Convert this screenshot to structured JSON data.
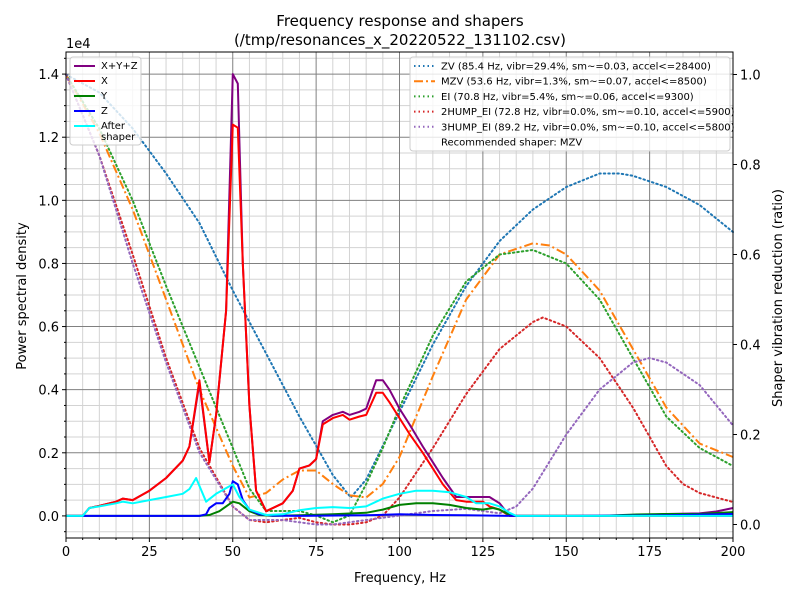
{
  "chart_data": {
    "type": "line",
    "title": "Frequency response and shapers",
    "subtitle": "(/tmp/resonances_x_20220522_131102.csv)",
    "xlabel": "Frequency, Hz",
    "ylabel": "Power spectral density",
    "ylabel_right": "Shaper vibration reduction (ratio)",
    "y_offset_text": "1e4",
    "xlim": [
      0,
      200
    ],
    "ylim": [
      -0.07,
      1.47
    ],
    "ylim_right": [
      -0.03,
      1.05
    ],
    "x_ticks": [
      "0",
      "25",
      "50",
      "75",
      "100",
      "125",
      "150",
      "175",
      "200"
    ],
    "x_tick_values": [
      0,
      25,
      50,
      75,
      100,
      125,
      150,
      175,
      200
    ],
    "y_ticks": [
      "0.0",
      "0.2",
      "0.4",
      "0.6",
      "0.8",
      "1.0",
      "1.2",
      "1.4"
    ],
    "y_tick_values": [
      0,
      0.2,
      0.4,
      0.6,
      0.8,
      1.0,
      1.2,
      1.4
    ],
    "y_ticks_right": [
      "0.0",
      "0.2",
      "0.4",
      "0.6",
      "0.8",
      "1.0"
    ],
    "y_tick_values_right": [
      0,
      0.2,
      0.4,
      0.6,
      0.8,
      1.0
    ],
    "grid": true,
    "legend_left_placement": "top-left",
    "legend_right_placement": "top-right",
    "series": [
      {
        "name": "X+Y+Z",
        "color": "#800080",
        "axis": "left",
        "style": "solid",
        "x": [
          0,
          5,
          7,
          10,
          15,
          17,
          20,
          25,
          30,
          35,
          37,
          40,
          43,
          45,
          48,
          50,
          51.5,
          53,
          55,
          57,
          60,
          65,
          68,
          70,
          73,
          75,
          77,
          80,
          83,
          85,
          88,
          90,
          93,
          95,
          97,
          100,
          103,
          107,
          110,
          113,
          117,
          120,
          123,
          125,
          127,
          130,
          133,
          135,
          140,
          150,
          160,
          170,
          180,
          190,
          195,
          200
        ],
        "y": [
          0,
          0,
          0.025,
          0.032,
          0.045,
          0.055,
          0.05,
          0.08,
          0.12,
          0.175,
          0.22,
          0.42,
          0.17,
          0.32,
          0.65,
          1.4,
          1.37,
          0.8,
          0.35,
          0.08,
          0.015,
          0.04,
          0.08,
          0.15,
          0.16,
          0.18,
          0.3,
          0.32,
          0.33,
          0.32,
          0.33,
          0.34,
          0.43,
          0.43,
          0.4,
          0.34,
          0.29,
          0.22,
          0.17,
          0.12,
          0.06,
          0.06,
          0.06,
          0.06,
          0.06,
          0.04,
          0.0,
          0.0,
          0.0,
          0.0,
          0.0,
          0.001,
          0.006,
          0.008,
          0.014,
          0.025
        ]
      },
      {
        "name": "X",
        "color": "#ff0000",
        "axis": "left",
        "style": "solid",
        "x": [
          0,
          5,
          7,
          10,
          15,
          17,
          20,
          25,
          30,
          35,
          37,
          40,
          43,
          45,
          48,
          50,
          51.5,
          53,
          55,
          57,
          60,
          65,
          68,
          70,
          73,
          75,
          77,
          80,
          83,
          85,
          88,
          90,
          93,
          95,
          97,
          100,
          103,
          107,
          110,
          113,
          117,
          120,
          123,
          125,
          127,
          130,
          133,
          135,
          140,
          200
        ],
        "y": [
          0,
          0,
          0.025,
          0.032,
          0.045,
          0.055,
          0.05,
          0.08,
          0.12,
          0.175,
          0.22,
          0.43,
          0.17,
          0.32,
          0.65,
          1.24,
          1.23,
          0.8,
          0.35,
          0.08,
          0.015,
          0.04,
          0.08,
          0.15,
          0.16,
          0.18,
          0.29,
          0.31,
          0.32,
          0.305,
          0.315,
          0.32,
          0.39,
          0.39,
          0.36,
          0.31,
          0.26,
          0.2,
          0.15,
          0.1,
          0.05,
          0.045,
          0.045,
          0.045,
          0.03,
          0.02,
          0.0,
          0.0,
          0.0,
          0.0
        ]
      },
      {
        "name": "Y",
        "color": "#008000",
        "axis": "left",
        "style": "solid",
        "x": [
          0,
          40,
          43,
          46,
          48,
          50,
          52,
          55,
          58,
          62,
          70,
          80,
          90,
          95,
          100,
          105,
          110,
          115,
          120,
          125,
          128,
          130,
          133,
          135,
          150,
          160,
          170,
          180,
          190,
          200
        ],
        "y": [
          0,
          0,
          0.003,
          0.015,
          0.03,
          0.045,
          0.04,
          0.015,
          0.003,
          0.0,
          0.002,
          0.005,
          0.01,
          0.02,
          0.035,
          0.04,
          0.04,
          0.035,
          0.025,
          0.02,
          0.025,
          0.02,
          0.003,
          0.0,
          0.0,
          0.0,
          0.004,
          0.006,
          0.006,
          0.012
        ]
      },
      {
        "name": "Z",
        "color": "#0000ff",
        "axis": "left",
        "style": "solid",
        "x": [
          0,
          40,
          42,
          43,
          45,
          47,
          49,
          50,
          51.5,
          53,
          55,
          58,
          62,
          70,
          90,
          100,
          110,
          120,
          135,
          150,
          180,
          200
        ],
        "y": [
          0,
          0,
          0.005,
          0.025,
          0.04,
          0.04,
          0.07,
          0.11,
          0.1,
          0.05,
          0.02,
          0.005,
          0.001,
          0.0,
          0.002,
          0.005,
          0.003,
          0.002,
          0.0,
          0.0,
          0.002,
          0.006
        ]
      },
      {
        "name": "After\nshaper",
        "color": "#00ffff",
        "axis": "left",
        "style": "solid",
        "x": [
          0,
          5,
          7,
          10,
          15,
          17,
          20,
          25,
          30,
          35,
          37,
          39,
          42,
          45,
          50,
          52,
          55,
          60,
          65,
          70,
          75,
          80,
          85,
          90,
          95,
          100,
          105,
          110,
          115,
          120,
          123,
          125,
          127,
          130,
          133,
          135,
          150,
          200
        ],
        "y": [
          0,
          0,
          0.025,
          0.03,
          0.04,
          0.045,
          0.04,
          0.05,
          0.06,
          0.07,
          0.085,
          0.12,
          0.045,
          0.07,
          0.1,
          0.06,
          0.02,
          0.003,
          0.005,
          0.018,
          0.025,
          0.028,
          0.025,
          0.03,
          0.055,
          0.07,
          0.08,
          0.08,
          0.075,
          0.06,
          0.04,
          0.04,
          0.04,
          0.03,
          0.01,
          0.0,
          0.0,
          0.0
        ]
      },
      {
        "name": "ZV (85.4 Hz, vibr=29.4%, sm~=0.03, accel<=28400)",
        "color": "#1f77b4",
        "axis": "right",
        "style": "dotted",
        "x": [
          0,
          10,
          20,
          30,
          40,
          50,
          60,
          70,
          80,
          85.4,
          90,
          100,
          110,
          120,
          130,
          140,
          150,
          160,
          166,
          170,
          180,
          190,
          200
        ],
        "y": [
          1.0,
          0.96,
          0.88,
          0.78,
          0.67,
          0.52,
          0.38,
          0.24,
          0.11,
          0.06,
          0.1,
          0.25,
          0.4,
          0.53,
          0.63,
          0.7,
          0.75,
          0.78,
          0.78,
          0.775,
          0.75,
          0.71,
          0.65
        ]
      },
      {
        "name": "MZV (53.6 Hz, vibr=1.3%, sm~=0.07, accel<=8500)",
        "color": "#ff7f0e",
        "axis": "right",
        "style": "dashdot",
        "x": [
          0,
          10,
          20,
          30,
          40,
          50,
          55,
          60,
          65,
          70,
          75,
          80,
          85,
          90,
          95,
          100,
          110,
          120,
          130,
          140,
          145,
          150,
          160,
          170,
          180,
          190,
          200
        ],
        "y": [
          1.0,
          0.87,
          0.7,
          0.5,
          0.3,
          0.13,
          0.06,
          0.07,
          0.1,
          0.12,
          0.12,
          0.09,
          0.065,
          0.06,
          0.09,
          0.15,
          0.33,
          0.5,
          0.6,
          0.625,
          0.62,
          0.6,
          0.52,
          0.39,
          0.26,
          0.18,
          0.15
        ]
      },
      {
        "name": "EI (70.8 Hz, vibr=5.4%, sm~=0.06, accel<=9300)",
        "color": "#2ca02c",
        "axis": "right",
        "style": "dotted",
        "x": [
          0,
          10,
          20,
          30,
          40,
          50,
          55,
          60,
          65,
          70,
          75,
          80,
          85,
          90,
          95,
          100,
          110,
          120,
          130,
          140,
          150,
          160,
          170,
          180,
          190,
          200
        ],
        "y": [
          1.0,
          0.88,
          0.72,
          0.53,
          0.35,
          0.17,
          0.08,
          0.03,
          0.03,
          0.03,
          0.02,
          0.005,
          0.02,
          0.09,
          0.17,
          0.26,
          0.42,
          0.54,
          0.6,
          0.61,
          0.58,
          0.5,
          0.37,
          0.24,
          0.17,
          0.13
        ]
      },
      {
        "name": "2HUMP_EI (72.8 Hz, vibr=0.0%, sm~=0.10, accel<=5900)",
        "color": "#d62728",
        "axis": "right",
        "style": "dotted",
        "x": [
          0,
          10,
          20,
          30,
          40,
          50,
          55,
          60,
          65,
          70,
          75,
          80,
          85,
          90,
          95,
          100,
          110,
          120,
          130,
          140,
          143,
          150,
          160,
          170,
          180,
          185,
          190,
          200
        ],
        "y": [
          1.0,
          0.82,
          0.6,
          0.37,
          0.17,
          0.04,
          0.01,
          0.005,
          0.01,
          0.015,
          0.005,
          0.0,
          0.0,
          0.005,
          0.02,
          0.06,
          0.17,
          0.29,
          0.39,
          0.45,
          0.46,
          0.44,
          0.37,
          0.26,
          0.13,
          0.09,
          0.07,
          0.05
        ]
      },
      {
        "name": "3HUMP_EI (89.2 Hz, vibr=0.0%, sm~=0.10, accel<=5800)",
        "color": "#9467bd",
        "axis": "right",
        "style": "dotted",
        "x": [
          0,
          10,
          20,
          30,
          40,
          50,
          55,
          60,
          65,
          70,
          75,
          80,
          90,
          100,
          110,
          120,
          130,
          135,
          140,
          150,
          160,
          170,
          175,
          180,
          190,
          200
        ],
        "y": [
          1.0,
          0.82,
          0.58,
          0.36,
          0.16,
          0.04,
          0.01,
          0.01,
          0.01,
          0.005,
          0.0,
          0.0,
          0.01,
          0.02,
          0.03,
          0.035,
          0.025,
          0.04,
          0.08,
          0.2,
          0.3,
          0.36,
          0.37,
          0.36,
          0.31,
          0.22
        ]
      }
    ],
    "legend_note": "Recommended shaper: MZV"
  }
}
